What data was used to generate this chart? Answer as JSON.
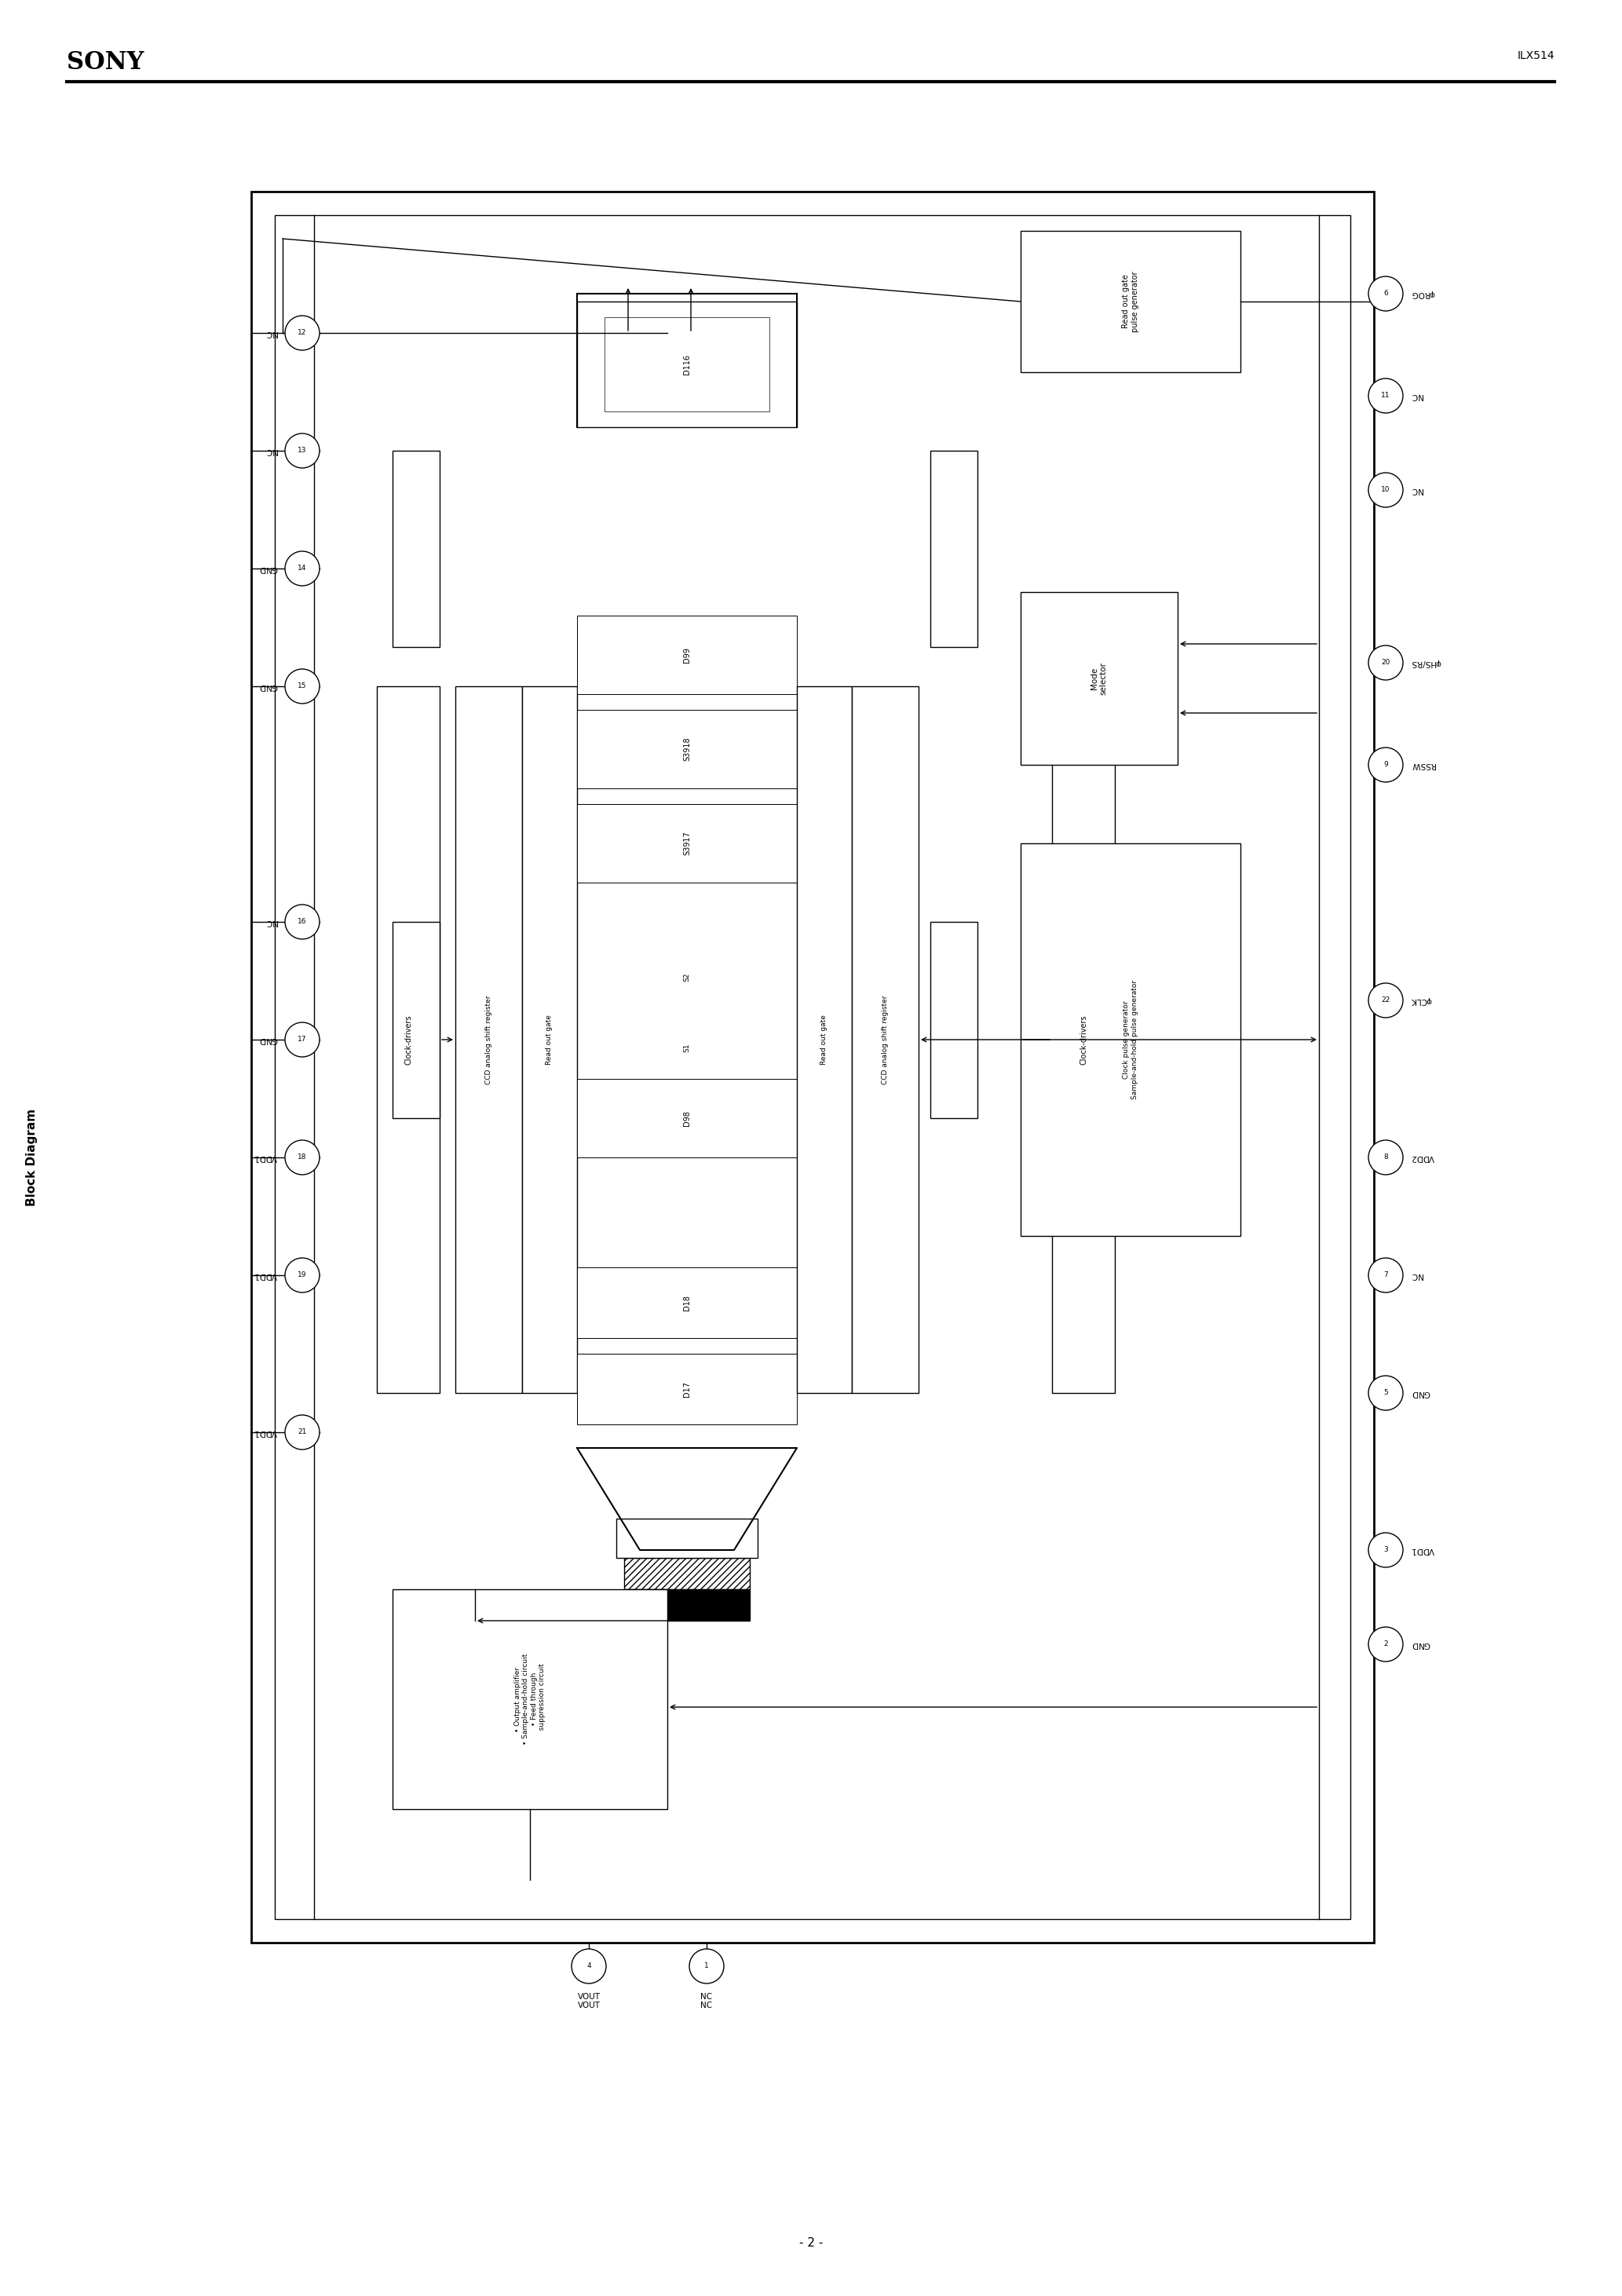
{
  "page_width": 20.66,
  "page_height": 29.24,
  "bg_color": "#ffffff",
  "header_sony": "SONY",
  "header_part": "ILX514",
  "footer_text": "- 2 -",
  "side_label": "Block Diagram",
  "left_pins": [
    {
      "num": "12",
      "label": "NC"
    },
    {
      "num": "13",
      "label": "NC"
    },
    {
      "num": "14",
      "label": "GND"
    },
    {
      "num": "15",
      "label": "GND"
    },
    {
      "num": "16",
      "label": "NC"
    },
    {
      "num": "17",
      "label": "GND"
    },
    {
      "num": "18",
      "label": "VDD1"
    },
    {
      "num": "19",
      "label": "VDD1"
    },
    {
      "num": "21",
      "label": "VDD1"
    }
  ],
  "right_pins": [
    {
      "num": "6",
      "label": "φROG"
    },
    {
      "num": "11",
      "label": "NC"
    },
    {
      "num": "10",
      "label": "NC"
    },
    {
      "num": "20",
      "label": "φHS/RS"
    },
    {
      "num": "9",
      "label": "RSSW"
    },
    {
      "num": "22",
      "label": "φCLK"
    },
    {
      "num": "8",
      "label": "VDD2"
    },
    {
      "num": "7",
      "label": "NC"
    },
    {
      "num": "5",
      "label": "GND"
    },
    {
      "num": "3",
      "label": "VDD1"
    },
    {
      "num": "2",
      "label": "GND"
    }
  ],
  "bottom_pins": [
    {
      "num": "4",
      "label": "VOUT"
    },
    {
      "num": "1",
      "label": "NC"
    }
  ]
}
